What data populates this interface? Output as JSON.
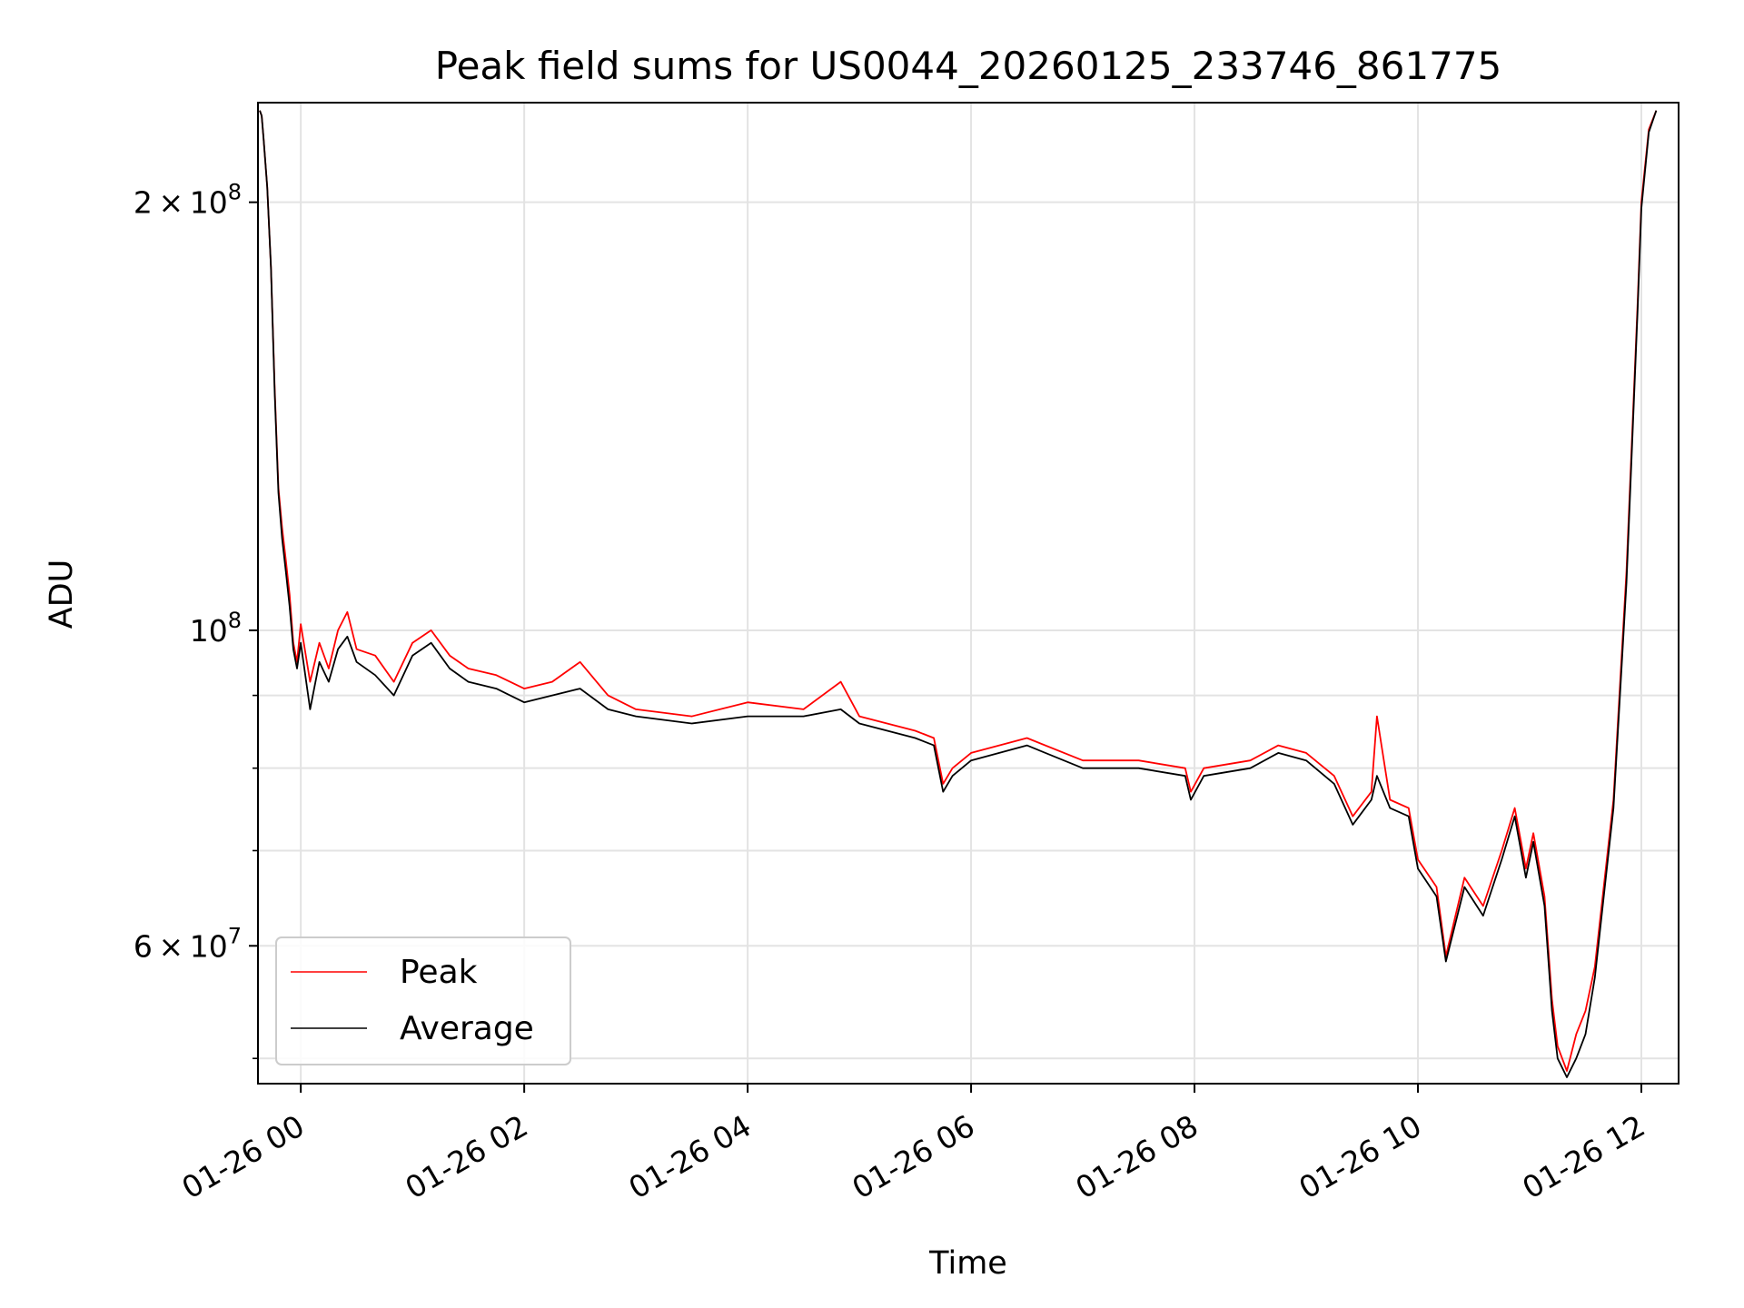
{
  "chart_data": {
    "type": "line",
    "title": "Peak field sums for US0044_20260125_233746_861775",
    "xlabel": "Time",
    "ylabel": "ADU",
    "x_scale": "time",
    "y_scale": "log",
    "xlim": [
      "2026-01-25 23:37",
      "2026-01-26 12:20"
    ],
    "ylim": [
      48000000,
      235000000
    ],
    "x_ticks": [
      {
        "value": "2026-01-26 00:00",
        "label": "01-26 00"
      },
      {
        "value": "2026-01-26 02:00",
        "label": "01-26 02"
      },
      {
        "value": "2026-01-26 04:00",
        "label": "01-26 04"
      },
      {
        "value": "2026-01-26 06:00",
        "label": "01-26 06"
      },
      {
        "value": "2026-01-26 08:00",
        "label": "01-26 08"
      },
      {
        "value": "2026-01-26 10:00",
        "label": "01-26 10"
      },
      {
        "value": "2026-01-26 12:00",
        "label": "01-26 12"
      }
    ],
    "y_major_ticks": [
      {
        "value": 60000000,
        "mantissa": "6",
        "base": "10",
        "exponent": "7"
      },
      {
        "value": 100000000,
        "mantissa": "",
        "base": "10",
        "exponent": "8"
      },
      {
        "value": 200000000,
        "mantissa": "2",
        "base": "10",
        "exponent": "8"
      }
    ],
    "y_minor_ticks": [
      50000000,
      70000000,
      80000000,
      90000000
    ],
    "grid": true,
    "legend_position": "lower-left",
    "series": [
      {
        "name": "Peak",
        "color": "#ff0000",
        "points": [
          [
            "2026-01-25 23:38",
            232000000
          ],
          [
            "2026-01-25 23:39",
            230000000
          ],
          [
            "2026-01-25 23:40",
            222000000
          ],
          [
            "2026-01-25 23:42",
            205000000
          ],
          [
            "2026-01-25 23:44",
            180000000
          ],
          [
            "2026-01-25 23:46",
            148000000
          ],
          [
            "2026-01-25 23:48",
            126000000
          ],
          [
            "2026-01-25 23:50",
            118000000
          ],
          [
            "2026-01-25 23:52",
            112000000
          ],
          [
            "2026-01-25 23:54",
            106000000
          ],
          [
            "2026-01-25 23:56",
            98000000
          ],
          [
            "2026-01-25 23:58",
            95000000
          ],
          [
            "2026-01-26 00:00",
            101000000
          ],
          [
            "2026-01-26 00:05",
            92000000
          ],
          [
            "2026-01-26 00:10",
            98000000
          ],
          [
            "2026-01-26 00:15",
            94000000
          ],
          [
            "2026-01-26 00:20",
            100000000
          ],
          [
            "2026-01-26 00:25",
            103000000
          ],
          [
            "2026-01-26 00:30",
            97000000
          ],
          [
            "2026-01-26 00:40",
            96000000
          ],
          [
            "2026-01-26 00:50",
            92000000
          ],
          [
            "2026-01-26 01:00",
            98000000
          ],
          [
            "2026-01-26 01:10",
            100000000
          ],
          [
            "2026-01-26 01:20",
            96000000
          ],
          [
            "2026-01-26 01:30",
            94000000
          ],
          [
            "2026-01-26 01:45",
            93000000
          ],
          [
            "2026-01-26 02:00",
            91000000
          ],
          [
            "2026-01-26 02:15",
            92000000
          ],
          [
            "2026-01-26 02:30",
            95000000
          ],
          [
            "2026-01-26 02:45",
            90000000
          ],
          [
            "2026-01-26 03:00",
            88000000
          ],
          [
            "2026-01-26 03:30",
            87000000
          ],
          [
            "2026-01-26 04:00",
            89000000
          ],
          [
            "2026-01-26 04:30",
            88000000
          ],
          [
            "2026-01-26 04:50",
            92000000
          ],
          [
            "2026-01-26 05:00",
            87000000
          ],
          [
            "2026-01-26 05:30",
            85000000
          ],
          [
            "2026-01-26 05:40",
            84000000
          ],
          [
            "2026-01-26 05:45",
            78000000
          ],
          [
            "2026-01-26 05:50",
            80000000
          ],
          [
            "2026-01-26 06:00",
            82000000
          ],
          [
            "2026-01-26 06:30",
            84000000
          ],
          [
            "2026-01-26 07:00",
            81000000
          ],
          [
            "2026-01-26 07:30",
            81000000
          ],
          [
            "2026-01-26 07:55",
            80000000
          ],
          [
            "2026-01-26 07:58",
            77000000
          ],
          [
            "2026-01-26 08:05",
            80000000
          ],
          [
            "2026-01-26 08:30",
            81000000
          ],
          [
            "2026-01-26 08:45",
            83000000
          ],
          [
            "2026-01-26 09:00",
            82000000
          ],
          [
            "2026-01-26 09:15",
            79000000
          ],
          [
            "2026-01-26 09:25",
            74000000
          ],
          [
            "2026-01-26 09:35",
            77000000
          ],
          [
            "2026-01-26 09:38",
            87000000
          ],
          [
            "2026-01-26 09:45",
            76000000
          ],
          [
            "2026-01-26 09:55",
            75000000
          ],
          [
            "2026-01-26 10:00",
            69000000
          ],
          [
            "2026-01-26 10:10",
            66000000
          ],
          [
            "2026-01-26 10:15",
            59000000
          ],
          [
            "2026-01-26 10:25",
            67000000
          ],
          [
            "2026-01-26 10:35",
            64000000
          ],
          [
            "2026-01-26 10:45",
            70000000
          ],
          [
            "2026-01-26 10:52",
            75000000
          ],
          [
            "2026-01-26 10:58",
            68000000
          ],
          [
            "2026-01-26 11:02",
            72000000
          ],
          [
            "2026-01-26 11:08",
            65000000
          ],
          [
            "2026-01-26 11:12",
            55000000
          ],
          [
            "2026-01-26 11:15",
            51000000
          ],
          [
            "2026-01-26 11:20",
            49000000
          ],
          [
            "2026-01-26 11:25",
            52000000
          ],
          [
            "2026-01-26 11:30",
            54000000
          ],
          [
            "2026-01-26 11:35",
            58000000
          ],
          [
            "2026-01-26 11:45",
            76000000
          ],
          [
            "2026-01-26 11:52",
            110000000
          ],
          [
            "2026-01-26 11:58",
            170000000
          ],
          [
            "2026-01-26 12:00",
            200000000
          ],
          [
            "2026-01-26 12:04",
            225000000
          ],
          [
            "2026-01-26 12:08",
            232000000
          ]
        ]
      },
      {
        "name": "Average",
        "color": "#000000",
        "points": [
          [
            "2026-01-25 23:38",
            232000000
          ],
          [
            "2026-01-25 23:39",
            230000000
          ],
          [
            "2026-01-25 23:40",
            222000000
          ],
          [
            "2026-01-25 23:42",
            205000000
          ],
          [
            "2026-01-25 23:44",
            180000000
          ],
          [
            "2026-01-25 23:46",
            147000000
          ],
          [
            "2026-01-25 23:48",
            125000000
          ],
          [
            "2026-01-25 23:50",
            116000000
          ],
          [
            "2026-01-25 23:52",
            110000000
          ],
          [
            "2026-01-25 23:54",
            104000000
          ],
          [
            "2026-01-25 23:56",
            97000000
          ],
          [
            "2026-01-25 23:58",
            94000000
          ],
          [
            "2026-01-26 00:00",
            98000000
          ],
          [
            "2026-01-26 00:05",
            88000000
          ],
          [
            "2026-01-26 00:10",
            95000000
          ],
          [
            "2026-01-26 00:15",
            92000000
          ],
          [
            "2026-01-26 00:20",
            97000000
          ],
          [
            "2026-01-26 00:25",
            99000000
          ],
          [
            "2026-01-26 00:30",
            95000000
          ],
          [
            "2026-01-26 00:40",
            93000000
          ],
          [
            "2026-01-26 00:50",
            90000000
          ],
          [
            "2026-01-26 01:00",
            96000000
          ],
          [
            "2026-01-26 01:10",
            98000000
          ],
          [
            "2026-01-26 01:20",
            94000000
          ],
          [
            "2026-01-26 01:30",
            92000000
          ],
          [
            "2026-01-26 01:45",
            91000000
          ],
          [
            "2026-01-26 02:00",
            89000000
          ],
          [
            "2026-01-26 02:15",
            90000000
          ],
          [
            "2026-01-26 02:30",
            91000000
          ],
          [
            "2026-01-26 02:45",
            88000000
          ],
          [
            "2026-01-26 03:00",
            87000000
          ],
          [
            "2026-01-26 03:30",
            86000000
          ],
          [
            "2026-01-26 04:00",
            87000000
          ],
          [
            "2026-01-26 04:30",
            87000000
          ],
          [
            "2026-01-26 04:50",
            88000000
          ],
          [
            "2026-01-26 05:00",
            86000000
          ],
          [
            "2026-01-26 05:30",
            84000000
          ],
          [
            "2026-01-26 05:40",
            83000000
          ],
          [
            "2026-01-26 05:45",
            77000000
          ],
          [
            "2026-01-26 05:50",
            79000000
          ],
          [
            "2026-01-26 06:00",
            81000000
          ],
          [
            "2026-01-26 06:30",
            83000000
          ],
          [
            "2026-01-26 07:00",
            80000000
          ],
          [
            "2026-01-26 07:30",
            80000000
          ],
          [
            "2026-01-26 07:55",
            79000000
          ],
          [
            "2026-01-26 07:58",
            76000000
          ],
          [
            "2026-01-26 08:05",
            79000000
          ],
          [
            "2026-01-26 08:30",
            80000000
          ],
          [
            "2026-01-26 08:45",
            82000000
          ],
          [
            "2026-01-26 09:00",
            81000000
          ],
          [
            "2026-01-26 09:15",
            78000000
          ],
          [
            "2026-01-26 09:25",
            73000000
          ],
          [
            "2026-01-26 09:35",
            76000000
          ],
          [
            "2026-01-26 09:38",
            79000000
          ],
          [
            "2026-01-26 09:45",
            75000000
          ],
          [
            "2026-01-26 09:55",
            74000000
          ],
          [
            "2026-01-26 10:00",
            68000000
          ],
          [
            "2026-01-26 10:10",
            65000000
          ],
          [
            "2026-01-26 10:15",
            58500000
          ],
          [
            "2026-01-26 10:25",
            66000000
          ],
          [
            "2026-01-26 10:35",
            63000000
          ],
          [
            "2026-01-26 10:45",
            69000000
          ],
          [
            "2026-01-26 10:52",
            74000000
          ],
          [
            "2026-01-26 10:58",
            67000000
          ],
          [
            "2026-01-26 11:02",
            71000000
          ],
          [
            "2026-01-26 11:08",
            64000000
          ],
          [
            "2026-01-26 11:12",
            54000000
          ],
          [
            "2026-01-26 11:15",
            50000000
          ],
          [
            "2026-01-26 11:20",
            48500000
          ],
          [
            "2026-01-26 11:25",
            50000000
          ],
          [
            "2026-01-26 11:30",
            52000000
          ],
          [
            "2026-01-26 11:35",
            57000000
          ],
          [
            "2026-01-26 11:45",
            75000000
          ],
          [
            "2026-01-26 11:52",
            108000000
          ],
          [
            "2026-01-26 11:58",
            168000000
          ],
          [
            "2026-01-26 12:00",
            198000000
          ],
          [
            "2026-01-26 12:04",
            224000000
          ],
          [
            "2026-01-26 12:08",
            232000000
          ]
        ]
      }
    ]
  }
}
